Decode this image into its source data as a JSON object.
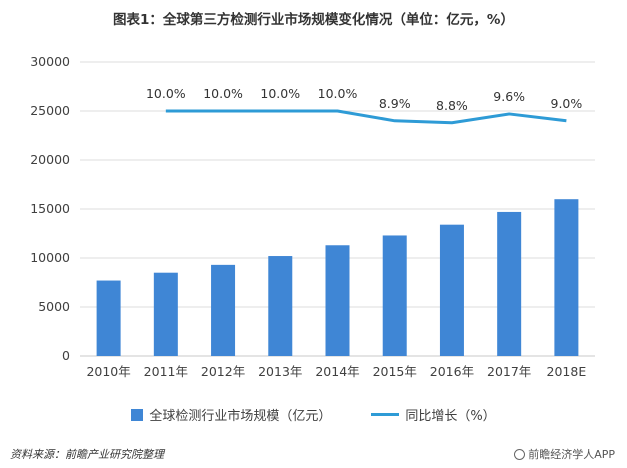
{
  "title": "图表1：全球第三方检测行业市场规模变化情况（单位：亿元，%）",
  "colors": {
    "bar": "#3f86d5",
    "line": "#2e9bd6",
    "grid": "#dddddd",
    "axis": "#c8c8c8"
  },
  "chart_data": {
    "type": "bar",
    "categories": [
      "2010年",
      "2011年",
      "2012年",
      "2013年",
      "2014年",
      "2015年",
      "2016年",
      "2017年",
      "2018E"
    ],
    "y_ticks": [
      "0",
      "5000",
      "10000",
      "15000",
      "20000",
      "25000",
      "30000"
    ],
    "ylim": [
      0,
      30000
    ],
    "grid": true,
    "legend_position": "bottom",
    "series": [
      {
        "name": "全球检测行业市场规模（亿元）",
        "type": "bar",
        "values": [
          7700,
          8500,
          9300,
          10200,
          11300,
          12300,
          13400,
          14700,
          16000
        ]
      },
      {
        "name": "同比增长（%）",
        "type": "line",
        "line_y_values": [
          null,
          25000,
          25000,
          25000,
          25000,
          24000,
          23800,
          24700,
          24000
        ],
        "values": [
          null,
          10.0,
          10.0,
          10.0,
          10.0,
          8.9,
          8.8,
          9.6,
          9.0
        ],
        "labels": [
          null,
          "10.0%",
          "10.0%",
          "10.0%",
          "10.0%",
          "8.9%",
          "8.8%",
          "9.6%",
          "9.0%"
        ]
      }
    ]
  },
  "legend": {
    "bar_label": "全球检测行业市场规模（亿元）",
    "line_label": "同比增长（%）"
  },
  "footer": {
    "source": "资料来源：前瞻产业研究院整理",
    "brand": "前瞻经济学人APP",
    "brand_icon": "brand-icon"
  }
}
